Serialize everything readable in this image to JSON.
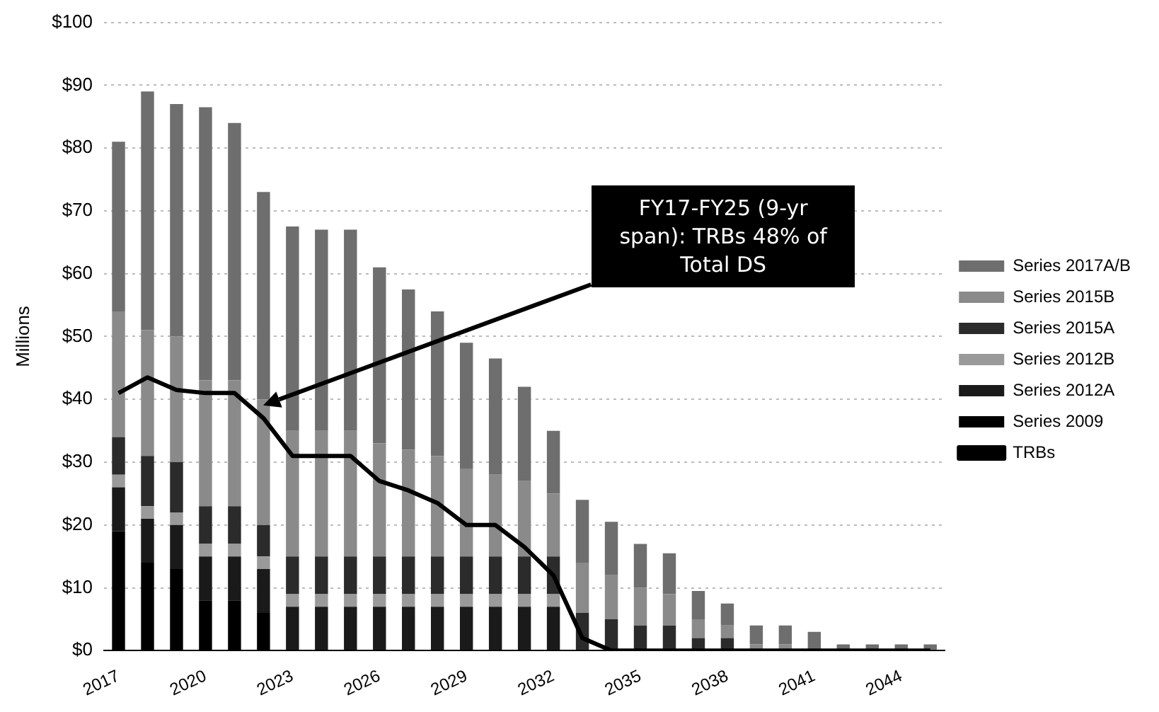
{
  "chart_data": {
    "type": "bar",
    "stacked": true,
    "ylabel": "Millions",
    "categories": [
      "2017",
      null,
      null,
      "2020",
      null,
      null,
      "2023",
      null,
      null,
      "2026",
      null,
      null,
      "2029",
      null,
      null,
      "2032",
      null,
      null,
      "2035",
      null,
      null,
      "2038",
      null,
      null,
      "2041",
      null,
      null,
      "2044",
      null
    ],
    "series": [
      {
        "name": "Series 2009",
        "color": "#000000",
        "values": [
          19,
          14,
          13,
          8,
          8,
          6,
          0,
          0,
          0,
          0,
          0,
          0,
          0,
          0,
          0,
          0,
          0,
          0,
          0,
          0,
          0,
          0,
          0,
          0,
          0,
          0,
          0,
          0,
          0
        ]
      },
      {
        "name": "Series 2012A",
        "color": "#1a1a1a",
        "values": [
          7,
          7,
          7,
          7,
          7,
          7,
          7,
          7,
          7,
          7,
          7,
          7,
          7,
          7,
          7,
          7,
          0,
          0,
          0,
          0,
          0,
          0,
          0,
          0,
          0,
          0,
          0,
          0,
          0
        ]
      },
      {
        "name": "Series 2012B",
        "color": "#9a9a9a",
        "values": [
          2,
          2,
          2,
          2,
          2,
          2,
          2,
          2,
          2,
          2,
          2,
          2,
          2,
          2,
          2,
          2,
          0,
          0,
          0,
          0,
          0,
          0,
          0,
          0,
          0,
          0,
          0,
          0,
          0
        ]
      },
      {
        "name": "Series 2015A",
        "color": "#2b2b2b",
        "values": [
          6,
          8,
          8,
          6,
          6,
          5,
          6,
          6,
          6,
          6,
          6,
          6,
          6,
          6,
          6,
          6,
          6,
          5,
          4,
          4,
          2,
          2,
          0,
          0,
          0,
          0,
          0,
          0,
          0
        ]
      },
      {
        "name": "Series 2015B",
        "color": "#8a8a8a",
        "values": [
          20,
          20,
          20,
          20,
          20,
          20,
          20,
          20,
          20,
          18,
          17,
          16,
          14,
          13,
          12,
          10,
          8,
          7,
          6,
          5,
          3,
          2,
          1,
          1,
          0,
          0,
          0,
          0,
          0
        ]
      },
      {
        "name": "Series 2017A/B",
        "color": "#6e6e6e",
        "values": [
          27,
          38,
          37,
          43.5,
          41,
          33,
          32.5,
          32,
          32,
          28,
          25.5,
          23,
          20,
          18.5,
          15,
          10,
          10,
          8.5,
          7,
          6.5,
          4.5,
          3.5,
          3,
          3,
          3,
          1,
          1,
          1,
          1
        ]
      },
      {
        "name": "TRBs",
        "type": "line",
        "color": "#000000",
        "values": [
          41,
          43.5,
          41.5,
          41,
          41,
          37,
          31,
          31,
          31,
          27,
          25.5,
          23.5,
          20,
          20,
          16.5,
          12,
          2,
          0,
          0,
          0,
          0,
          0,
          0,
          0,
          0,
          0,
          0,
          0,
          0
        ]
      }
    ],
    "ylim": [
      0,
      100
    ],
    "yticks": [
      {
        "value": 0,
        "label": "$0"
      },
      {
        "value": 10,
        "label": "$10"
      },
      {
        "value": 20,
        "label": "$20"
      },
      {
        "value": 30,
        "label": "$30"
      },
      {
        "value": 40,
        "label": "$40"
      },
      {
        "value": 50,
        "label": "$50"
      },
      {
        "value": 60,
        "label": "$60"
      },
      {
        "value": 70,
        "label": "$70"
      },
      {
        "value": 80,
        "label": "$80"
      },
      {
        "value": 90,
        "label": "$90"
      },
      {
        "value": 100,
        "label": "$100"
      }
    ],
    "grid": "y",
    "legend": "right",
    "marker": "none",
    "annotations": [
      "FY17-FY25 (9-yr span): TRBs 48% of Total DS"
    ]
  }
}
